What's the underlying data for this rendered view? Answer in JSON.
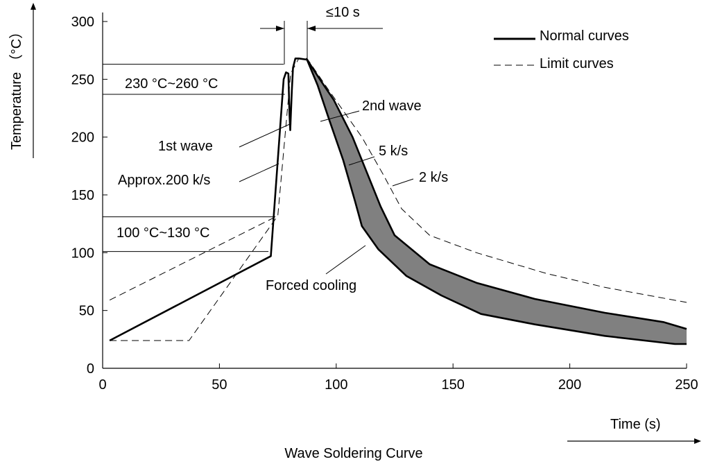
{
  "chart_data": {
    "type": "line",
    "title": "Wave Soldering Curve",
    "xlabel": "Time (s)",
    "ylabel": "Temperature （°C）",
    "xlim": [
      0,
      250
    ],
    "ylim": [
      0,
      300
    ],
    "x_ticks": [
      "0",
      "50",
      "100",
      "150",
      "200",
      "250"
    ],
    "y_ticks": [
      "0",
      "50",
      "100",
      "150",
      "200",
      "250",
      "300"
    ],
    "grid": false,
    "legend": {
      "position": "top-right",
      "entries": [
        "Normal curves",
        "Limit curves"
      ]
    },
    "series": [
      {
        "name": "Normal curves",
        "style": "solid",
        "points": [
          [
            3,
            24
          ],
          [
            72,
            97
          ],
          [
            77.5,
            250
          ],
          [
            78.5,
            256
          ],
          [
            79.5,
            255
          ],
          [
            80,
            220
          ],
          [
            80.3,
            206
          ],
          [
            81,
            240
          ],
          [
            81.5,
            260
          ],
          [
            82.5,
            268
          ],
          [
            84,
            268
          ],
          [
            87.5,
            267
          ],
          [
            92,
            245
          ],
          [
            97,
            215
          ],
          [
            103,
            180
          ],
          [
            108,
            145
          ],
          [
            111,
            123
          ],
          [
            118,
            103
          ],
          [
            130,
            80
          ],
          [
            145,
            63
          ],
          [
            162,
            47
          ],
          [
            185,
            38
          ],
          [
            215,
            28
          ],
          [
            245,
            21
          ],
          [
            250,
            21
          ]
        ]
      },
      {
        "name": "Normal curves (upper band edge)",
        "style": "solid",
        "points": [
          [
            87.5,
            267
          ],
          [
            93,
            250
          ],
          [
            99,
            232
          ],
          [
            107,
            200
          ],
          [
            113,
            170
          ],
          [
            119,
            140
          ],
          [
            125,
            115
          ],
          [
            140,
            90
          ],
          [
            160,
            74
          ],
          [
            185,
            60
          ],
          [
            215,
            48
          ],
          [
            240,
            40
          ],
          [
            250,
            34
          ]
        ]
      },
      {
        "name": "Limit curves",
        "style": "dashed",
        "points": [
          [
            3,
            59
          ],
          [
            75,
            132
          ],
          [
            80.5,
            255
          ],
          [
            84,
            268
          ],
          [
            87.5,
            268
          ],
          [
            97,
            240
          ],
          [
            111,
            200
          ],
          [
            120,
            168
          ],
          [
            128,
            138
          ],
          [
            140,
            115
          ],
          [
            160,
            100
          ],
          [
            190,
            82
          ],
          [
            215,
            70
          ],
          [
            250,
            57
          ]
        ]
      },
      {
        "name": "Limit curves (lower)",
        "style": "dashed",
        "points": [
          [
            3,
            24
          ],
          [
            37,
            24
          ],
          [
            75,
            132
          ]
        ]
      }
    ],
    "reference_lines": [
      {
        "y": 263,
        "x_end": 77.5
      },
      {
        "y": 237,
        "x_end": 78
      },
      {
        "y": 131,
        "x_end": 74
      },
      {
        "y": 101,
        "x_end": 71
      }
    ],
    "annotations": [
      {
        "text": "230 °C~260 °C"
      },
      {
        "text": "100 °C~130 °C"
      },
      {
        "text": "1st wave"
      },
      {
        "text": "Approx.200 k/s"
      },
      {
        "text": "2nd wave"
      },
      {
        "text": "5 k/s"
      },
      {
        "text": "2 k/s"
      },
      {
        "text": "Forced cooling"
      },
      {
        "text": "≤10 s"
      }
    ]
  }
}
